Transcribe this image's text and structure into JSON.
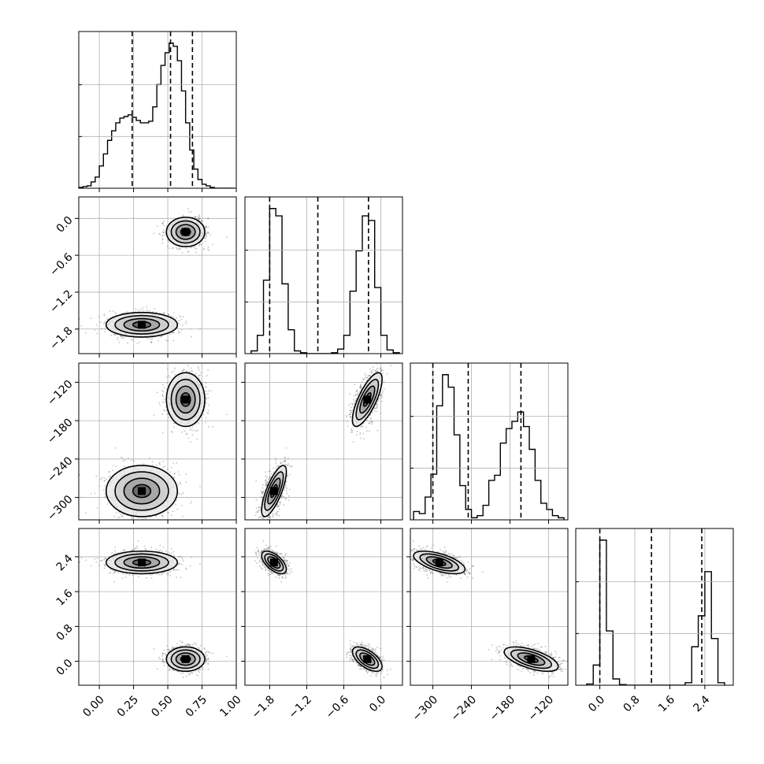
{
  "chart_data": {
    "type": "corner",
    "params": [
      {
        "range": [
          -0.15,
          1.0
        ],
        "ticks": [
          0.0,
          0.25,
          0.5,
          0.75,
          1.0
        ],
        "tick_labels": [
          "0.00",
          "0.25",
          "0.50",
          "0.75",
          "1.00"
        ],
        "quantiles": [
          0.24,
          0.52,
          0.68
        ],
        "hist": {
          "edges": [
            -0.15,
            -0.12,
            -0.09,
            -0.06,
            -0.03,
            0.0,
            0.03,
            0.06,
            0.09,
            0.12,
            0.15,
            0.18,
            0.21,
            0.24,
            0.27,
            0.3,
            0.33,
            0.36,
            0.39,
            0.42,
            0.45,
            0.48,
            0.51,
            0.54,
            0.57,
            0.6,
            0.63,
            0.66,
            0.69,
            0.72,
            0.75,
            0.78,
            0.81,
            0.84,
            0.87,
            0.9,
            0.93,
            0.96,
            0.99
          ],
          "counts": [
            1,
            2,
            3,
            8,
            14,
            28,
            43,
            60,
            72,
            82,
            88,
            90,
            92,
            89,
            85,
            82,
            82,
            84,
            102,
            130,
            154,
            170,
            182,
            178,
            160,
            122,
            82,
            48,
            24,
            11,
            5,
            3,
            1,
            0,
            0,
            0,
            0,
            0
          ]
        }
      },
      {
        "range": [
          -2.2,
          0.35
        ],
        "ticks": [
          -1.8,
          -1.2,
          -0.6,
          0.0
        ],
        "tick_labels": [
          "−1.8",
          "−1.2",
          "−0.6",
          "0.0"
        ],
        "quantiles": [
          -1.8,
          -1.02,
          -0.2
        ],
        "hist": {
          "edges": [
            -2.1,
            -2.0,
            -1.9,
            -1.8,
            -1.7,
            -1.6,
            -1.5,
            -1.4,
            -1.3,
            -1.2,
            -1.1,
            -1.0,
            -0.9,
            -0.8,
            -0.7,
            -0.6,
            -0.5,
            -0.4,
            -0.3,
            -0.2,
            -0.1,
            0.0,
            0.1,
            0.2,
            0.3
          ],
          "counts": [
            3,
            20,
            80,
            158,
            150,
            76,
            26,
            3,
            1,
            0,
            0,
            0,
            0,
            1,
            5,
            20,
            68,
            112,
            150,
            145,
            72,
            20,
            4,
            1
          ]
        }
      },
      {
        "range": [
          -335,
          -90
        ],
        "ticks": [
          -300,
          -240,
          -180,
          -120
        ],
        "tick_labels": [
          "−300",
          "−240",
          "−180",
          "−120"
        ],
        "quantiles": [
          -300,
          -245,
          -163
        ],
        "hist": {
          "edges": [
            -330,
            -321,
            -312,
            -303,
            -294,
            -285,
            -276,
            -267,
            -258,
            -249,
            -240,
            -231,
            -222,
            -213,
            -204,
            -195,
            -186,
            -177,
            -168,
            -159,
            -150,
            -141,
            -132,
            -123,
            -114,
            -105,
            -96
          ],
          "counts": [
            8,
            6,
            22,
            44,
            110,
            140,
            128,
            82,
            33,
            10,
            2,
            4,
            14,
            38,
            43,
            74,
            88,
            95,
            104,
            90,
            68,
            38,
            16,
            10,
            4,
            2
          ]
        }
      },
      {
        "range": [
          -0.55,
          3.05
        ],
        "ticks": [
          0.0,
          0.8,
          1.6,
          2.4
        ],
        "tick_labels": [
          "0.0",
          "0.8",
          "1.6",
          "2.4"
        ],
        "quantiles": [
          0.0,
          1.18,
          2.33
        ],
        "hist": {
          "edges": [
            -0.3,
            -0.15,
            0.0,
            0.15,
            0.3,
            0.45,
            0.6,
            0.75,
            0.9,
            1.05,
            1.2,
            1.35,
            1.5,
            1.65,
            1.8,
            1.95,
            2.1,
            2.25,
            2.4,
            2.55,
            2.7,
            2.85
          ],
          "counts": [
            2,
            32,
            230,
            86,
            10,
            1,
            0,
            0,
            0,
            0,
            0,
            0,
            0,
            0,
            0,
            4,
            61,
            110,
            180,
            74,
            4
          ]
        }
      }
    ],
    "clusters": [
      {
        "center": [
          0.31,
          -1.73,
          -290,
          2.27
        ],
        "spread": [
          0.13,
          0.1,
          20,
          0.13
        ]
      },
      {
        "center": [
          0.63,
          -0.22,
          -147,
          0.05
        ],
        "spread": [
          0.07,
          0.12,
          21,
          0.14
        ]
      }
    ],
    "grid": true,
    "contour_levels": 4,
    "line_style_quantiles": "dashed"
  }
}
